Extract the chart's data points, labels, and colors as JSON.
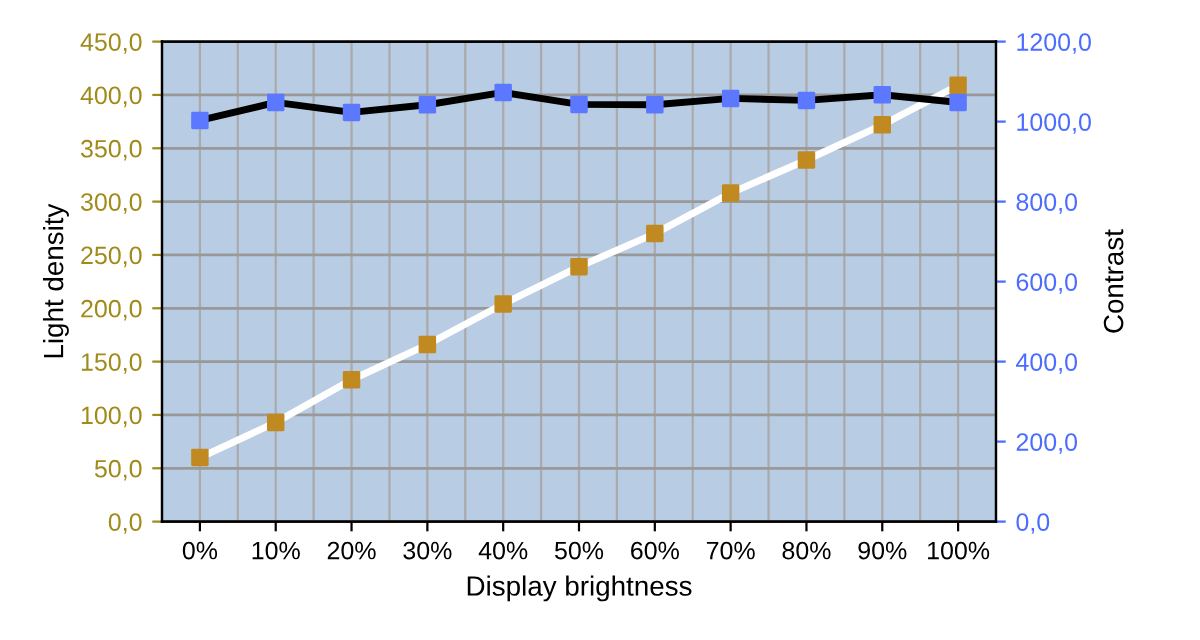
{
  "chart_data": {
    "type": "line",
    "xlabel": "Display brightness",
    "ylabel": "Light density",
    "y2label": "Contrast",
    "categories": [
      "0%",
      "10%",
      "20%",
      "30%",
      "40%",
      "50%",
      "60%",
      "70%",
      "80%",
      "90%",
      "100%"
    ],
    "series": [
      {
        "color": "#ffffff",
        "colors": [
          "#c08a20",
          "#c08a20",
          "#c08a20",
          "#c08a20",
          "#c08a20",
          "#c08a20",
          "#c08a20",
          "#c08a20",
          "#c08a20",
          "#c08a20",
          "#c08a20"
        ],
        "values": [
          60,
          93,
          133,
          166,
          204,
          239,
          270,
          308,
          339,
          372,
          409
        ]
      },
      {
        "color": "#000000",
        "axis": "y2",
        "colors": [
          "#5b78ff",
          "#5b78ff",
          "#5b78ff",
          "#5b78ff",
          "#5b78ff",
          "#5b78ff",
          "#5b78ff",
          "#5b78ff",
          "#5b78ff",
          "#5b78ff",
          "#5b78ff"
        ],
        "values": [
          1003,
          1048,
          1023,
          1042,
          1073,
          1043,
          1042,
          1058,
          1053,
          1067,
          1048
        ]
      }
    ],
    "ylim": [
      0,
      450
    ],
    "yticks": [
      {
        "value": 0,
        "label": "0,0"
      },
      {
        "value": 50,
        "label": "50,0"
      },
      {
        "value": 100,
        "label": "100,0"
      },
      {
        "value": 150,
        "label": "150,0"
      },
      {
        "value": 200,
        "label": "200,0"
      },
      {
        "value": 250,
        "label": "250,0"
      },
      {
        "value": 300,
        "label": "300,0"
      },
      {
        "value": 350,
        "label": "350,0"
      },
      {
        "value": 400,
        "label": "400,0"
      },
      {
        "value": 450,
        "label": "450,0"
      }
    ],
    "y2lim": [
      0,
      1200
    ],
    "y2ticks": [
      {
        "value": 0,
        "label": "0,0"
      },
      {
        "value": 200,
        "label": "200,0"
      },
      {
        "value": 400,
        "label": "400,0"
      },
      {
        "value": 600,
        "label": "600,0"
      },
      {
        "value": 800,
        "label": "800,0"
      },
      {
        "value": 1000,
        "label": "1000,0"
      },
      {
        "value": 1200,
        "label": "1200,0"
      }
    ],
    "grid": true,
    "marker": "square",
    "line_style": "solid",
    "legend": false
  }
}
